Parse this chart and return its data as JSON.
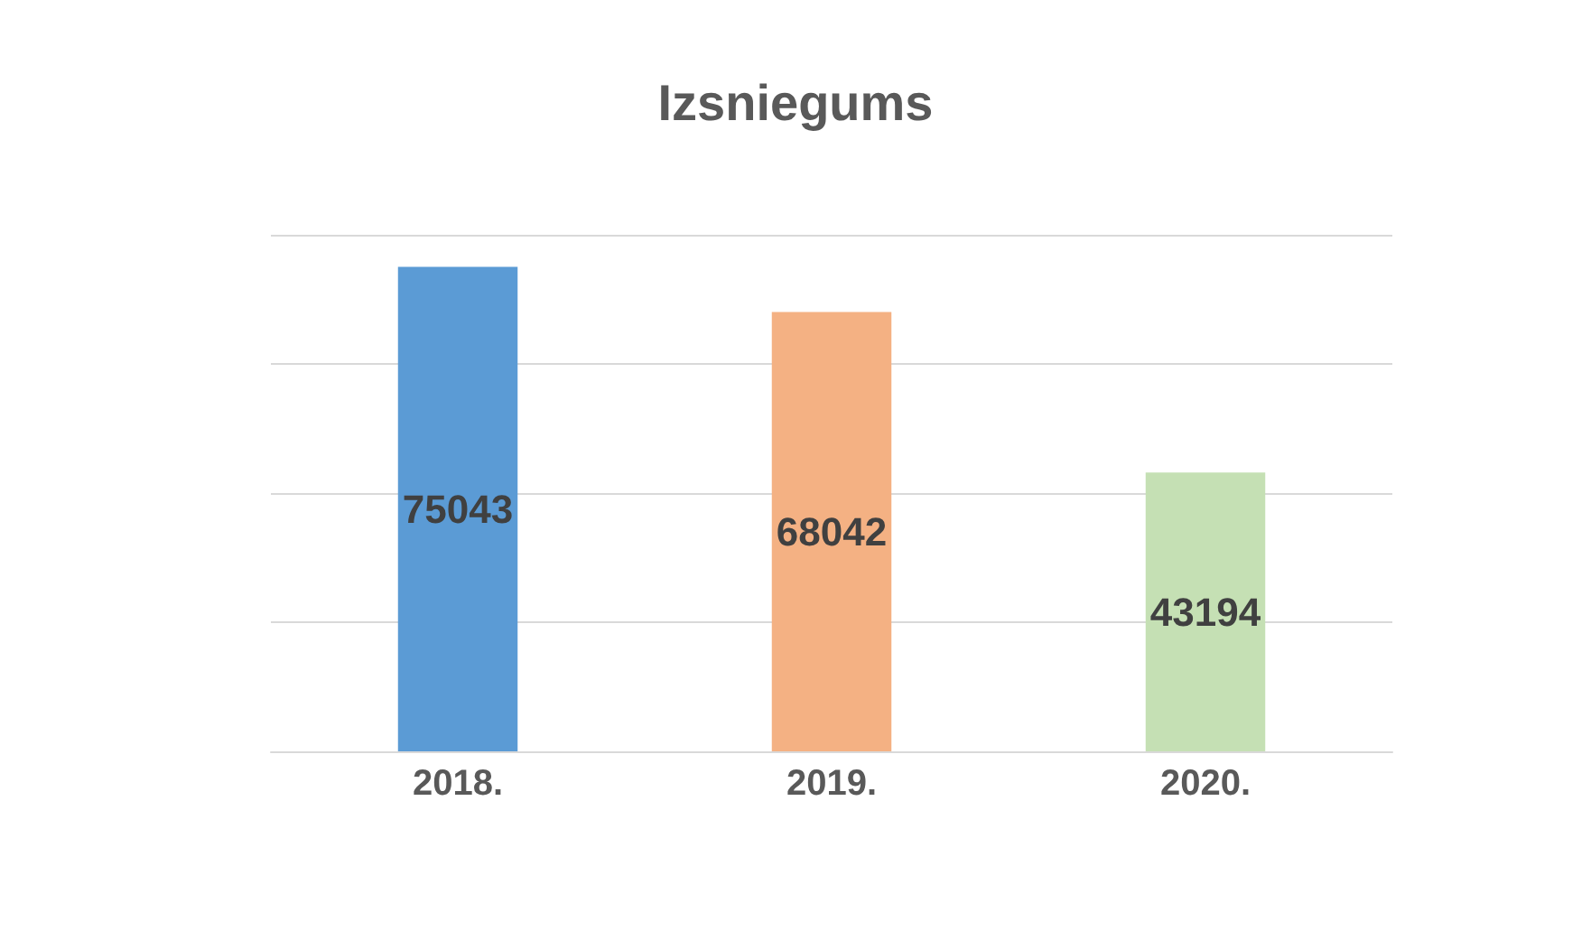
{
  "chart_data": {
    "type": "bar",
    "title": "Izsniegums",
    "categories": [
      "2018.",
      "2019.",
      "2020."
    ],
    "values": [
      75043,
      68042,
      43194
    ],
    "colors": [
      "#5b9bd5",
      "#f4b183",
      "#c5e0b4"
    ],
    "data_labels": true,
    "ylim": [
      0,
      80000
    ],
    "yticks": [
      {
        "value": 0,
        "label": null
      },
      {
        "value": 20000,
        "label": null
      },
      {
        "value": 40000,
        "label": null
      },
      {
        "value": 60000,
        "label": null
      },
      {
        "value": 80000,
        "label": null
      }
    ],
    "tick_labels": "x",
    "grid": "y"
  }
}
